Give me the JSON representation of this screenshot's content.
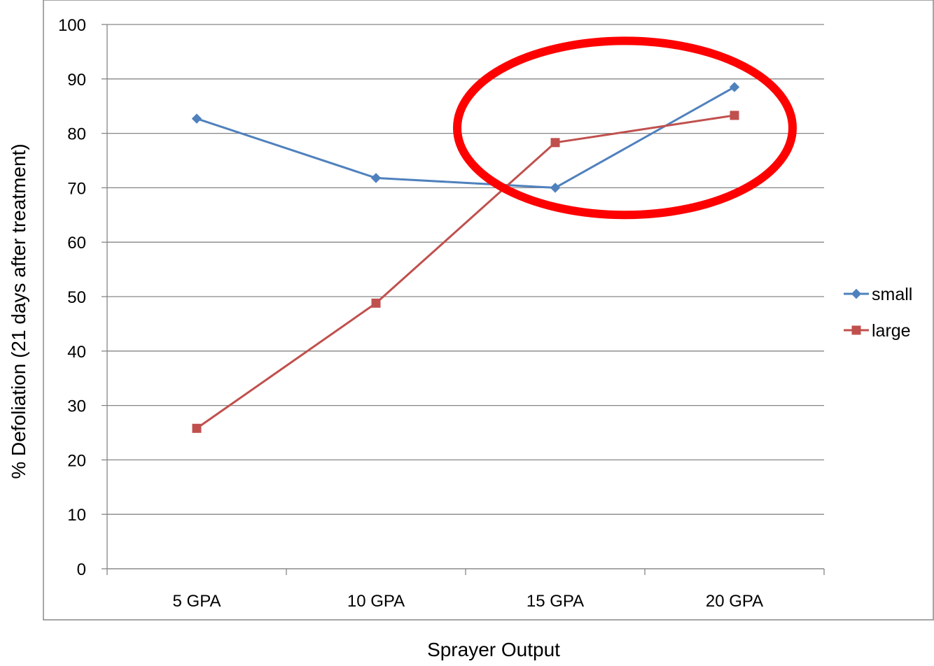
{
  "chart_data": {
    "type": "line",
    "title": "",
    "xlabel": "Sprayer Output",
    "ylabel": "% Defoliation (21 days after treatment)",
    "categories": [
      "5 GPA",
      "10 GPA",
      "15 GPA",
      "20 GPA"
    ],
    "ylim": [
      0,
      100
    ],
    "yticks": [
      0,
      10,
      20,
      30,
      40,
      50,
      60,
      70,
      80,
      90,
      100
    ],
    "ytick_labels": [
      "0",
      "10",
      "20",
      "30",
      "40",
      "50",
      "60",
      "70",
      "80",
      "90",
      "100"
    ],
    "grid": true,
    "legend_position": "right",
    "series": [
      {
        "name": "small",
        "values": [
          82.7,
          71.8,
          70.0,
          88.5
        ],
        "color": "#4F81BD",
        "marker": "diamond"
      },
      {
        "name": "large",
        "values": [
          25.8,
          48.8,
          78.3,
          83.3
        ],
        "color": "#C0504D",
        "marker": "square"
      }
    ],
    "annotations": [
      {
        "type": "ellipse",
        "color": "#FF0000",
        "note_category_range": [
          "15 GPA",
          "20 GPA"
        ],
        "note_value_range": [
          65,
          97
        ]
      }
    ]
  }
}
